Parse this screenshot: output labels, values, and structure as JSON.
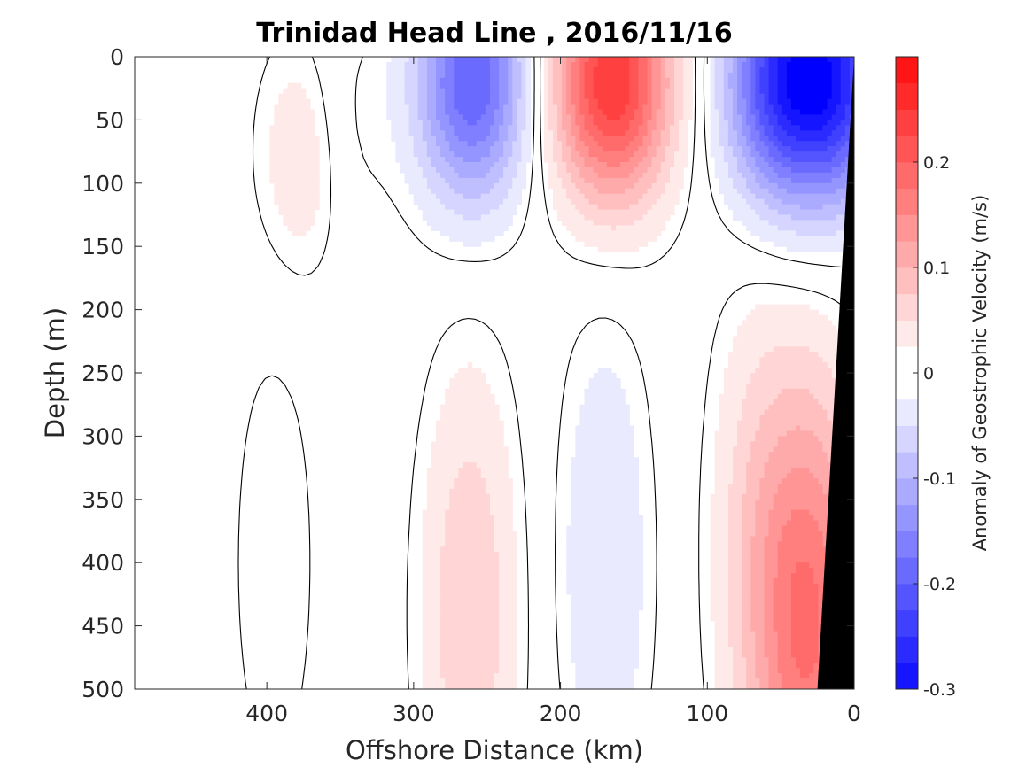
{
  "chart_data": {
    "type": "heatmap",
    "subtype": "filled-contour-section",
    "title": "Trinidad Head Line , 2016/11/16",
    "xlabel": "Offshore Distance (km)",
    "ylabel": "Depth (m)",
    "xlim": [
      490,
      0
    ],
    "ylim": [
      0,
      500
    ],
    "x_reversed": true,
    "y_reversed": true,
    "x_ticks": [
      400,
      300,
      200,
      100,
      0
    ],
    "y_ticks": [
      0,
      50,
      100,
      150,
      200,
      250,
      300,
      350,
      400,
      450,
      500
    ],
    "grid": false,
    "colorbar": {
      "label": "Anomaly of Geostrophic Velocity (m/s)",
      "range": [
        -0.3,
        0.3
      ],
      "step": 0.025,
      "ticks": [
        -0.3,
        -0.2,
        -0.1,
        0,
        0.1,
        0.2
      ],
      "tick_labels": [
        "-0.3",
        "-0.2",
        "-0.1",
        "0",
        "0.1",
        "0.2"
      ],
      "colormap": "blue-white-red",
      "low_color": "#0000ff",
      "zero_color": "#ffffff",
      "high_color": "#ff0000"
    },
    "zero_contour_drawn": true,
    "bathymetry": {
      "color": "#000000",
      "bottom_profile": [
        [
          25,
          500
        ],
        [
          0,
          0
        ]
      ]
    },
    "velocity_features": [
      {
        "center_distance_km": 395,
        "center_depth_m": 400,
        "core_value": -0.025,
        "polarity": "southward"
      },
      {
        "center_distance_km": 375,
        "center_depth_m": 80,
        "core_value": 0.05,
        "polarity": "northward"
      },
      {
        "center_distance_km": 350,
        "center_depth_m": 60,
        "core_value": -0.025,
        "polarity": "southward"
      },
      {
        "center_distance_km": 260,
        "center_depth_m": 20,
        "core_value": -0.2,
        "polarity": "southward"
      },
      {
        "center_distance_km": 262,
        "center_depth_m": 440,
        "core_value": 0.075,
        "polarity": "northward"
      },
      {
        "center_distance_km": 165,
        "center_depth_m": 20,
        "core_value": 0.25,
        "polarity": "northward"
      },
      {
        "center_distance_km": 170,
        "center_depth_m": 400,
        "core_value": -0.05,
        "polarity": "southward"
      },
      {
        "center_distance_km": 55,
        "center_depth_m": 20,
        "core_value": -0.175,
        "polarity": "southward"
      },
      {
        "center_distance_km": 15,
        "center_depth_m": 20,
        "core_value": -0.25,
        "polarity": "southward"
      },
      {
        "center_distance_km": 30,
        "center_depth_m": 450,
        "core_value": 0.175,
        "polarity": "northward"
      },
      {
        "center_distance_km": 68,
        "center_depth_m": 380,
        "core_value": 0.05,
        "polarity": "northward"
      }
    ]
  }
}
